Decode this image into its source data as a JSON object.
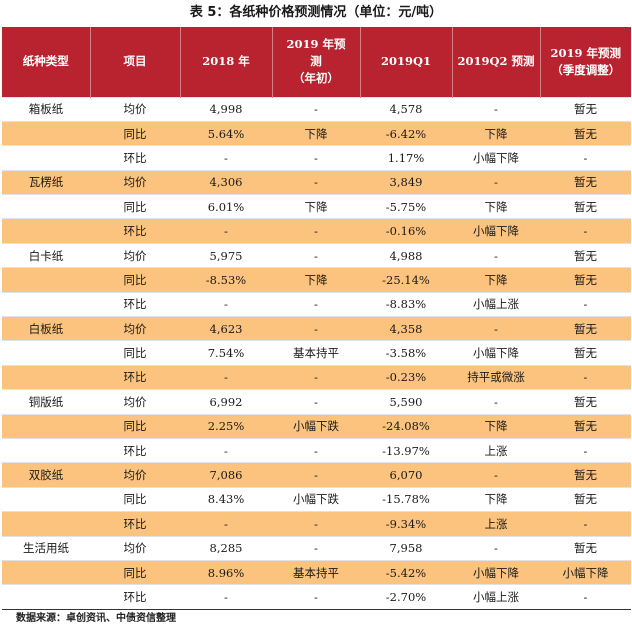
{
  "title": "表 5：各纸种价格预测情况（单位：元/吨）",
  "headers": [
    [
      "纸种类型"
    ],
    [
      "项目"
    ],
    [
      "2018 年"
    ],
    [
      "2019 年预",
      "测",
      "（年初）"
    ],
    [
      "2019Q1"
    ],
    [
      "2019Q2 预测"
    ],
    [
      "2019 年预测",
      "（季度调整）"
    ]
  ],
  "rows": [
    {
      "paper": "箱板纸",
      "item": "均价",
      "y2018": "4,998",
      "forecast_early": "-",
      "q1": "4,578",
      "q2": "-",
      "forecast_adj": "暂无",
      "highlight": false
    },
    {
      "paper": "",
      "item": "同比",
      "y2018": "5.64%",
      "forecast_early": "下降",
      "q1": "-6.42%",
      "q2": "下降",
      "forecast_adj": "暂无",
      "highlight": true
    },
    {
      "paper": "",
      "item": "环比",
      "y2018": "-",
      "forecast_early": "-",
      "q1": "1.17%",
      "q2": "小幅下降",
      "forecast_adj": "-",
      "highlight": false
    },
    {
      "paper": "瓦楞纸",
      "item": "均价",
      "y2018": "4,306",
      "forecast_early": "-",
      "q1": "3,849",
      "q2": "-",
      "forecast_adj": "暂无",
      "highlight": true
    },
    {
      "paper": "",
      "item": "同比",
      "y2018": "6.01%",
      "forecast_early": "下降",
      "q1": "-5.75%",
      "q2": "下降",
      "forecast_adj": "暂无",
      "highlight": false
    },
    {
      "paper": "",
      "item": "环比",
      "y2018": "-",
      "forecast_early": "-",
      "q1": "-0.16%",
      "q2": "小幅下降",
      "forecast_adj": "-",
      "highlight": true
    },
    {
      "paper": "白卡纸",
      "item": "均价",
      "y2018": "5,975",
      "forecast_early": "-",
      "q1": "4,988",
      "q2": "-",
      "forecast_adj": "暂无",
      "highlight": false
    },
    {
      "paper": "",
      "item": "同比",
      "y2018": "-8.53%",
      "forecast_early": "下降",
      "q1": "-25.14%",
      "q2": "下降",
      "forecast_adj": "暂无",
      "highlight": true
    },
    {
      "paper": "",
      "item": "环比",
      "y2018": "-",
      "forecast_early": "-",
      "q1": "-8.83%",
      "q2": "小幅上涨",
      "forecast_adj": "-",
      "highlight": false
    },
    {
      "paper": "白板纸",
      "item": "均价",
      "y2018": "4,623",
      "forecast_early": "-",
      "q1": "4,358",
      "q2": "-",
      "forecast_adj": "暂无",
      "highlight": true
    },
    {
      "paper": "",
      "item": "同比",
      "y2018": "7.54%",
      "forecast_early": "基本持平",
      "q1": "-3.58%",
      "q2": "小幅下降",
      "forecast_adj": "暂无",
      "highlight": false
    },
    {
      "paper": "",
      "item": "环比",
      "y2018": "-",
      "forecast_early": "-",
      "q1": "-0.23%",
      "q2": "持平或微涨",
      "forecast_adj": "-",
      "highlight": true
    },
    {
      "paper": "铜版纸",
      "item": "均价",
      "y2018": "6,992",
      "forecast_early": "-",
      "q1": "5,590",
      "q2": "-",
      "forecast_adj": "暂无",
      "highlight": false
    },
    {
      "paper": "",
      "item": "同比",
      "y2018": "2.25%",
      "forecast_early": "小幅下跌",
      "q1": "-24.08%",
      "q2": "下降",
      "forecast_adj": "暂无",
      "highlight": true
    },
    {
      "paper": "",
      "item": "环比",
      "y2018": "-",
      "forecast_early": "-",
      "q1": "-13.97%",
      "q2": "上涨",
      "forecast_adj": "-",
      "highlight": false
    },
    {
      "paper": "双胶纸",
      "item": "均价",
      "y2018": "7,086",
      "forecast_early": "-",
      "q1": "6,070",
      "q2": "-",
      "forecast_adj": "暂无",
      "highlight": true
    },
    {
      "paper": "",
      "item": "同比",
      "y2018": "8.43%",
      "forecast_early": "小幅下跌",
      "q1": "-15.78%",
      "q2": "下降",
      "forecast_adj": "暂无",
      "highlight": false
    },
    {
      "paper": "",
      "item": "环比",
      "y2018": "-",
      "forecast_early": "-",
      "q1": "-9.34%",
      "q2": "上涨",
      "forecast_adj": "-",
      "highlight": true
    },
    {
      "paper": "生活用纸",
      "item": "均价",
      "y2018": "8,285",
      "forecast_early": "-",
      "q1": "7,958",
      "q2": "-",
      "forecast_adj": "暂无",
      "highlight": false
    },
    {
      "paper": "",
      "item": "同比",
      "y2018": "8.96%",
      "forecast_early": "基本持平",
      "q1": "-5.42%",
      "q2": "小幅下降",
      "forecast_adj": "小幅下降",
      "highlight": true
    },
    {
      "paper": "",
      "item": "环比",
      "y2018": "-",
      "forecast_early": "-",
      "q1": "-2.70%",
      "q2": "小幅上涨",
      "forecast_adj": "-",
      "highlight": false
    }
  ],
  "source": "数据来源：卓创资讯、中债资信整理",
  "colors": {
    "header_bg": "#b8232f",
    "highlight_bg": "#fbc37d"
  }
}
